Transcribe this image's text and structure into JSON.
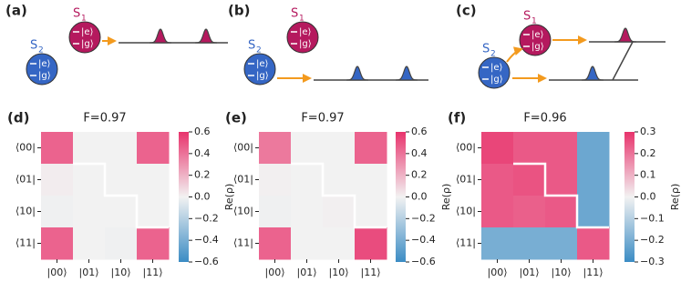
{
  "figure": {
    "diagrams": [
      {
        "label": "(a)",
        "qubits": [
          {
            "name": "S",
            "index": "1",
            "levels": [
              "|e⟩",
              "|g⟩"
            ]
          },
          {
            "name": "S",
            "index": "2",
            "levels": [
              "|e⟩",
              "|g⟩"
            ]
          }
        ]
      },
      {
        "label": "(b)",
        "qubits": [
          {
            "name": "S",
            "index": "1",
            "levels": [
              "|e⟩",
              "|g⟩"
            ]
          },
          {
            "name": "S",
            "index": "2",
            "levels": [
              "|e⟩",
              "|g⟩"
            ]
          }
        ]
      },
      {
        "label": "(c)",
        "qubits": [
          {
            "name": "S",
            "index": "1",
            "levels": [
              "|e⟩",
              "|g⟩"
            ]
          },
          {
            "name": "S",
            "index": "2",
            "levels": [
              "|e⟩",
              "|g⟩"
            ]
          }
        ]
      }
    ]
  },
  "chart_data": [
    {
      "type": "heatmap",
      "label": "(d)",
      "title": "F=0.97",
      "x_categories": [
        "|00⟩",
        "|01⟩",
        "|10⟩",
        "|11⟩"
      ],
      "y_categories": [
        "⟨00|",
        "⟨01|",
        "⟨10|",
        "⟨11|"
      ],
      "z": [
        [
          0.45,
          0.0,
          0.0,
          0.45
        ],
        [
          0.02,
          0.0,
          0.0,
          0.0
        ],
        [
          -0.01,
          0.0,
          0.0,
          0.0
        ],
        [
          0.45,
          0.0,
          -0.01,
          0.45
        ]
      ],
      "clim": [
        -0.6,
        0.6
      ],
      "cticks": [
        {
          "value": -0.6,
          "label": "−0.6"
        },
        {
          "value": -0.4,
          "label": "−0.4"
        },
        {
          "value": -0.2,
          "label": "−0.2"
        },
        {
          "value": 0.0,
          "label": "0.0"
        },
        0.2,
        0.4,
        0.6
      ],
      "colorbar_label": "Re(ρ)",
      "colormap": [
        "#3b8cc4",
        "#f2f2f2",
        "#e8336c"
      ]
    },
    {
      "type": "heatmap",
      "label": "(e)",
      "title": "F=0.97",
      "x_categories": [
        "|00⟩",
        "|01⟩",
        "|10⟩",
        "|11⟩"
      ],
      "y_categories": [
        "⟨00|",
        "⟨01|",
        "⟨10|",
        "⟨11|"
      ],
      "z": [
        [
          0.38,
          0.0,
          0.0,
          0.45
        ],
        [
          0.01,
          0.0,
          0.0,
          0.0
        ],
        [
          -0.01,
          0.0,
          0.01,
          0.0
        ],
        [
          0.45,
          0.0,
          0.0,
          0.52
        ]
      ],
      "clim": [
        -0.6,
        0.6
      ],
      "cticks": [
        {
          "value": -0.6,
          "label": "−0.6"
        },
        {
          "value": -0.4,
          "label": "−0.4"
        },
        {
          "value": -0.2,
          "label": "−0.2"
        },
        {
          "value": 0.0,
          "label": "0.0"
        },
        0.2,
        0.4,
        0.6
      ],
      "colorbar_label": "Re(ρ)",
      "colormap": [
        "#3b8cc4",
        "#f2f2f2",
        "#e8336c"
      ]
    },
    {
      "type": "heatmap",
      "label": "(f)",
      "title": "F=0.96",
      "x_categories": [
        "|00⟩",
        "|01⟩",
        "|10⟩",
        "|11⟩"
      ],
      "y_categories": [
        "⟨00|",
        "⟨01|",
        "⟨10|",
        "⟨11|"
      ],
      "z": [
        [
          0.27,
          0.24,
          0.24,
          -0.22
        ],
        [
          0.24,
          0.25,
          0.24,
          -0.22
        ],
        [
          0.24,
          0.23,
          0.24,
          -0.22
        ],
        [
          -0.2,
          -0.2,
          -0.2,
          0.24
        ]
      ],
      "clim": [
        -0.3,
        0.3
      ],
      "cticks": [
        {
          "value": -0.3,
          "label": "−0.3"
        },
        {
          "value": -0.2,
          "label": "−0.2"
        },
        {
          "value": -0.1,
          "label": "−0.1"
        },
        {
          "value": 0.0,
          "label": "0.0"
        },
        0.1,
        0.2,
        0.3
      ],
      "colorbar_label": "Re(ρ)",
      "colormap": [
        "#3b8cc4",
        "#f2f2f2",
        "#e8336c"
      ]
    }
  ]
}
